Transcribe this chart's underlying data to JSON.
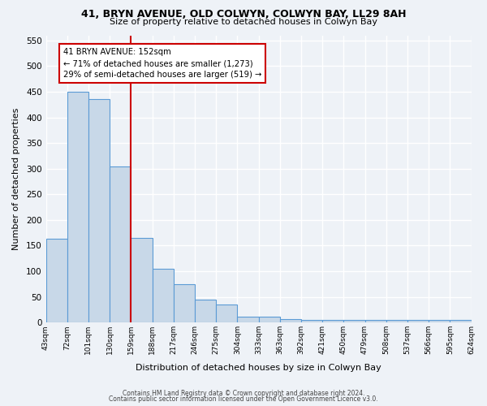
{
  "title1": "41, BRYN AVENUE, OLD COLWYN, COLWYN BAY, LL29 8AH",
  "title2": "Size of property relative to detached houses in Colwyn Bay",
  "xlabel": "Distribution of detached houses by size in Colwyn Bay",
  "ylabel": "Number of detached properties",
  "bin_labels": [
    "43sqm",
    "72sqm",
    "101sqm",
    "130sqm",
    "159sqm",
    "188sqm",
    "217sqm",
    "246sqm",
    "275sqm",
    "304sqm",
    "333sqm",
    "363sqm",
    "392sqm",
    "421sqm",
    "450sqm",
    "479sqm",
    "508sqm",
    "537sqm",
    "566sqm",
    "595sqm",
    "624sqm"
  ],
  "bar_heights": [
    163,
    450,
    435,
    305,
    165,
    105,
    75,
    44,
    35,
    11,
    11,
    6,
    5,
    5,
    5,
    5,
    5,
    5,
    5,
    5
  ],
  "bar_color": "#c8d8e8",
  "bar_edge_color": "#5b9bd5",
  "vline_x_pos": 3.5,
  "vline_color": "#cc0000",
  "annotation_text": "41 BRYN AVENUE: 152sqm\n← 71% of detached houses are smaller (1,273)\n29% of semi-detached houses are larger (519) →",
  "annotation_box_color": "#cc0000",
  "ylim": [
    0,
    560
  ],
  "yticks": [
    0,
    50,
    100,
    150,
    200,
    250,
    300,
    350,
    400,
    450,
    500,
    550
  ],
  "footer1": "Contains HM Land Registry data © Crown copyright and database right 2024.",
  "footer2": "Contains public sector information licensed under the Open Government Licence v3.0.",
  "bg_color": "#eef2f7",
  "plot_bg_color": "#eef2f7",
  "grid_color": "#ffffff"
}
